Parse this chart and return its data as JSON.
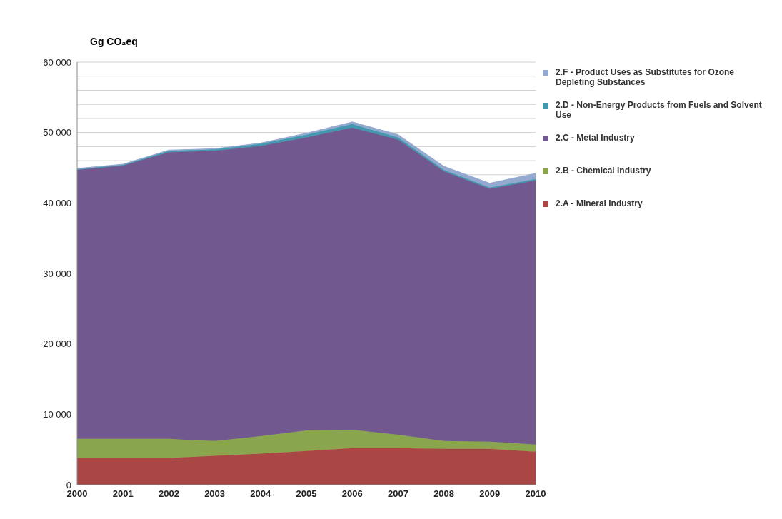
{
  "chart_data": {
    "type": "area",
    "stacked": true,
    "ylabel": "Gg CO₂eq",
    "categories": [
      "2000",
      "2001",
      "2002",
      "2003",
      "2004",
      "2005",
      "2006",
      "2007",
      "2008",
      "2009",
      "2010"
    ],
    "series": [
      {
        "name": "2.A - Mineral Industry",
        "color": "#aa4643",
        "values": [
          3800,
          3800,
          3800,
          4100,
          4400,
          4800,
          5200,
          5200,
          5100,
          5100,
          4700
        ]
      },
      {
        "name": "2.B - Chemical Industry",
        "color": "#89a54e",
        "values": [
          2700,
          2700,
          2700,
          2100,
          2500,
          2900,
          2600,
          1900,
          1100,
          1000,
          1000
        ]
      },
      {
        "name": "2.C - Metal Industry",
        "color": "#71588f",
        "values": [
          38200,
          38800,
          40700,
          41200,
          41200,
          41600,
          42900,
          41900,
          38300,
          35900,
          37500
        ]
      },
      {
        "name": "2.D - Non-Energy Products from Fuels and Solvent Use",
        "color": "#4198af",
        "values": [
          100,
          100,
          200,
          200,
          300,
          400,
          500,
          300,
          200,
          200,
          200
        ]
      },
      {
        "name": "2.F - Product Uses as Substitutes for Ozone Depleting Substances",
        "color": "#93a9cf",
        "values": [
          100,
          100,
          100,
          100,
          100,
          200,
          300,
          400,
          500,
          600,
          800
        ]
      }
    ],
    "ylim": [
      0,
      60000
    ],
    "yticks": [
      0,
      {
        "value": 10000,
        "label": "10 000"
      },
      {
        "value": 20000,
        "label": "20 000"
      },
      {
        "value": 30000,
        "label": "30 000"
      },
      {
        "value": 40000,
        "label": "40 000"
      },
      {
        "value": 44000,
        "label": null
      },
      {
        "value": 46000,
        "label": null
      },
      {
        "value": 48000,
        "label": null
      },
      {
        "value": 50000,
        "label": "50 000"
      },
      {
        "value": 52000,
        "label": null
      },
      {
        "value": 54000,
        "label": null
      },
      {
        "value": 56000,
        "label": null
      },
      {
        "value": 58000,
        "label": null
      },
      {
        "value": 60000,
        "label": "60 000"
      }
    ],
    "grid": "y",
    "legend": "right"
  }
}
